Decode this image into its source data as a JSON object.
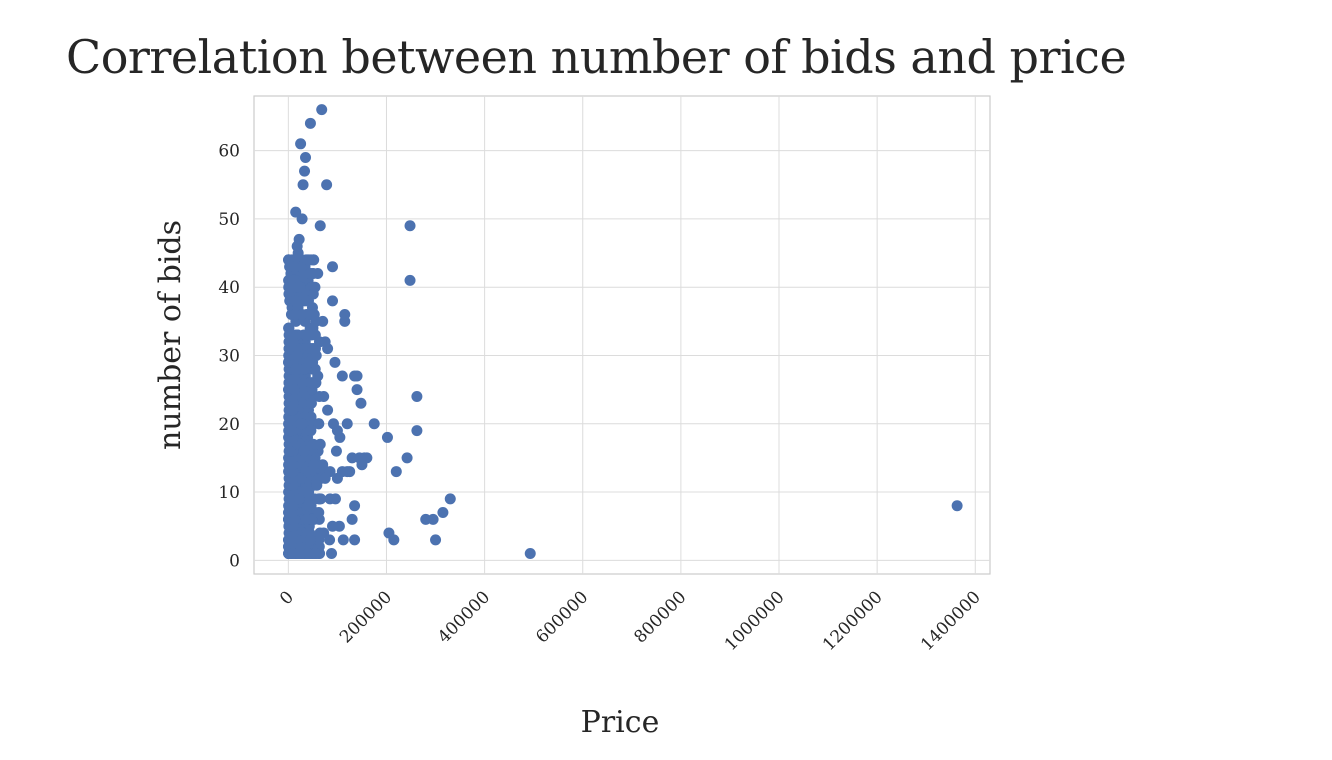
{
  "chart_data": {
    "type": "scatter",
    "title": "Correlation between number of bids and price",
    "xlabel": "Price",
    "ylabel": "number of bids",
    "xlim": [
      -70000,
      1430000
    ],
    "ylim": [
      -2,
      68
    ],
    "xticks": [
      "0",
      "200000",
      "400000",
      "600000",
      "800000",
      "1000000",
      "1200000",
      "1400000"
    ],
    "yticks": [
      "0",
      "10",
      "20",
      "30",
      "40",
      "50",
      "60"
    ],
    "grid": true,
    "marker_color": "#4c72b0",
    "points": [
      [
        1363000,
        8
      ],
      [
        493000,
        1
      ],
      [
        330000,
        9
      ],
      [
        315000,
        7
      ],
      [
        300000,
        3
      ],
      [
        295000,
        6
      ],
      [
        280000,
        6
      ],
      [
        262000,
        24
      ],
      [
        262000,
        19
      ],
      [
        248000,
        41
      ],
      [
        248000,
        49
      ],
      [
        242000,
        15
      ],
      [
        220000,
        13
      ],
      [
        215000,
        3
      ],
      [
        205000,
        4
      ],
      [
        202000,
        18
      ],
      [
        175000,
        20
      ],
      [
        160000,
        15
      ],
      [
        155000,
        15
      ],
      [
        150000,
        14
      ],
      [
        148000,
        23
      ],
      [
        145000,
        15
      ],
      [
        140000,
        25
      ],
      [
        140000,
        27
      ],
      [
        135000,
        27
      ],
      [
        135000,
        3
      ],
      [
        135000,
        8
      ],
      [
        130000,
        6
      ],
      [
        130000,
        15
      ],
      [
        125000,
        13
      ],
      [
        120000,
        13
      ],
      [
        120000,
        20
      ],
      [
        115000,
        35
      ],
      [
        115000,
        36
      ],
      [
        112000,
        3
      ],
      [
        110000,
        13
      ],
      [
        105000,
        18
      ],
      [
        100000,
        19
      ],
      [
        98000,
        16
      ],
      [
        95000,
        29
      ],
      [
        92000,
        20
      ],
      [
        90000,
        43
      ],
      [
        90000,
        38
      ],
      [
        90000,
        5
      ],
      [
        88000,
        1
      ],
      [
        85000,
        13
      ],
      [
        85000,
        9
      ],
      [
        80000,
        31
      ],
      [
        78000,
        55
      ],
      [
        75000,
        32
      ],
      [
        72000,
        24
      ],
      [
        70000,
        35
      ],
      [
        65000,
        49
      ],
      [
        68000,
        66
      ],
      [
        60000,
        27
      ],
      [
        62000,
        20
      ],
      [
        55000,
        33
      ],
      [
        50000,
        31
      ],
      [
        45000,
        64
      ],
      [
        42000,
        44
      ],
      [
        38000,
        38
      ],
      [
        35000,
        59
      ],
      [
        33000,
        57
      ],
      [
        30000,
        55
      ],
      [
        25000,
        61
      ],
      [
        28000,
        50
      ],
      [
        22000,
        47
      ],
      [
        20000,
        45
      ],
      [
        18000,
        46
      ],
      [
        15000,
        51
      ],
      [
        12000,
        43
      ],
      [
        10000,
        41
      ],
      [
        8000,
        40
      ],
      [
        10000,
        1
      ],
      [
        20000,
        1
      ],
      [
        30000,
        1
      ],
      [
        40000,
        1
      ],
      [
        55000,
        1
      ],
      [
        110000,
        27
      ],
      [
        100000,
        12
      ],
      [
        75000,
        12
      ],
      [
        80000,
        22
      ],
      [
        65000,
        17
      ],
      [
        70000,
        14
      ],
      [
        58000,
        11
      ],
      [
        48000,
        26
      ],
      [
        42000,
        29
      ],
      [
        36000,
        33
      ],
      [
        28000,
        36
      ],
      [
        24000,
        40
      ],
      [
        18000,
        30
      ],
      [
        15000,
        28
      ],
      [
        12000,
        25
      ],
      [
        8000,
        22
      ],
      [
        5000,
        19
      ],
      [
        3000,
        16
      ],
      [
        26000,
        20
      ],
      [
        32000,
        16
      ],
      [
        46000,
        19
      ],
      [
        52000,
        14
      ],
      [
        62000,
        7
      ],
      [
        72000,
        4
      ],
      [
        84000,
        3
      ],
      [
        96000,
        9
      ],
      [
        104000,
        5
      ],
      [
        66000,
        9
      ],
      [
        38000,
        6
      ],
      [
        22000,
        9
      ]
    ]
  }
}
